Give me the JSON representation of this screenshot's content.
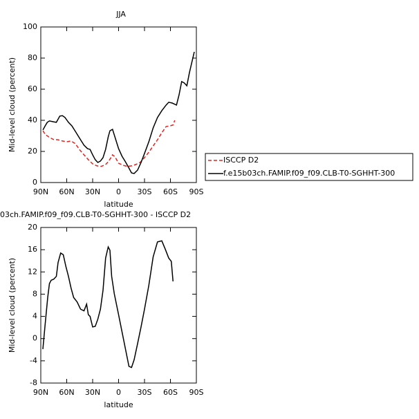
{
  "chart_data": [
    {
      "type": "line",
      "title": "JJA",
      "ylabel": "Mid-level cloud (percent)",
      "xlabel": "latitude",
      "xlim": [
        90,
        -90
      ],
      "xticks": [
        {
          "value": 90,
          "label": "90N"
        },
        {
          "value": 60,
          "label": "60N"
        },
        {
          "value": 30,
          "label": "30N"
        },
        0,
        {
          "value": -30,
          "label": "30S"
        },
        {
          "value": -60,
          "label": "60S"
        },
        {
          "value": -90,
          "label": "90S"
        }
      ],
      "ylim": [
        0,
        100
      ],
      "yticks": [
        0,
        20,
        40,
        60,
        80,
        100
      ],
      "legend": "right",
      "series": [
        {
          "name": "ISCCP D2",
          "color": "#e8201c",
          "dashed": true,
          "x": [
            87.5,
            85,
            80,
            75,
            70,
            65,
            60,
            55,
            50,
            45,
            40,
            35,
            30,
            25,
            20,
            15,
            12,
            10,
            7,
            4,
            0,
            -5,
            -10,
            -15,
            -20,
            -25,
            -30,
            -35,
            -40,
            -45,
            -50,
            -55,
            -60,
            -63,
            -65
          ],
          "values": [
            33.3,
            31,
            29,
            27.6,
            27.5,
            26.7,
            26.2,
            26.7,
            25,
            21,
            17.8,
            14.7,
            12,
            10.7,
            10.4,
            11.6,
            13.3,
            15,
            17.8,
            16.4,
            12.4,
            11.1,
            10.4,
            10.7,
            11.6,
            13,
            16,
            19.5,
            23.5,
            27.5,
            32,
            36,
            36.5,
            37,
            40
          ]
        },
        {
          "name": "f.e15b03ch.FAMIP.f09_f09.CLB-T0-SGHHT-300",
          "color": "#000000",
          "dashed": false,
          "x": [
            87.5,
            85,
            82.5,
            80,
            75,
            72,
            68,
            65,
            62,
            58,
            54,
            50,
            45,
            40,
            36,
            33,
            30,
            27,
            24,
            21,
            18,
            15,
            12,
            10,
            7,
            4,
            0,
            -4,
            -8,
            -12,
            -15,
            -18,
            -22,
            -26,
            -30,
            -35,
            -40,
            -45,
            -50,
            -55,
            -58,
            -62,
            -67,
            -70,
            -73,
            -76,
            -79,
            -82,
            -87.6
          ],
          "values": [
            33.8,
            36.4,
            38.7,
            39.6,
            39,
            38.7,
            42.7,
            43,
            41.8,
            38.7,
            36.4,
            32.9,
            28.4,
            24,
            21.8,
            21.3,
            17.8,
            14.7,
            12.9,
            13.8,
            16,
            21.3,
            29.3,
            33.3,
            34.2,
            28.9,
            21.8,
            16.9,
            13.3,
            9.3,
            6.2,
            5.8,
            8,
            12.9,
            18.7,
            26.2,
            35.1,
            41.8,
            46.2,
            49.8,
            51.6,
            51.1,
            49.8,
            56.4,
            64.9,
            64,
            62.2,
            70.7,
            84
          ]
        }
      ]
    },
    {
      "type": "line",
      "title": "03ch.FAMIP.f09_f09.CLB-T0-SGHHT-300 - ISCCP D2",
      "ylabel": "Mid-level cloud (percent)",
      "xlabel": "latitude",
      "xlim": [
        90,
        -90
      ],
      "xticks": [
        {
          "value": 90,
          "label": "90N"
        },
        {
          "value": 60,
          "label": "60N"
        },
        {
          "value": 30,
          "label": "30N"
        },
        0,
        {
          "value": -30,
          "label": "30S"
        },
        {
          "value": -60,
          "label": "60S"
        },
        {
          "value": -90,
          "label": "90S"
        }
      ],
      "ylim": [
        -8,
        20
      ],
      "yticks": [
        -8,
        -4,
        0,
        4,
        8,
        12,
        16,
        20
      ],
      "color": "#000000",
      "x": [
        87.6,
        85,
        82,
        80,
        78,
        75,
        72,
        70,
        67,
        64,
        61,
        58,
        55,
        52,
        48,
        44,
        40,
        37,
        35,
        33,
        30,
        27,
        24,
        21,
        18,
        15,
        12,
        10,
        8,
        5,
        0,
        -4,
        -8,
        -12,
        -15,
        -18,
        -22,
        -26,
        -30,
        -35,
        -40,
        -45,
        -50,
        -54,
        -58,
        -61,
        -63
      ],
      "values": [
        -1.9,
        2.5,
        7.4,
        9.9,
        10.5,
        10.7,
        11.2,
        13.7,
        15.4,
        15.1,
        13,
        11.2,
        9.1,
        7.4,
        6.6,
        5.3,
        5,
        6.2,
        4.3,
        4,
        2.1,
        2.2,
        3.5,
        5.3,
        8.7,
        14.5,
        16.5,
        15.9,
        11.2,
        8.1,
        4.3,
        1.2,
        -1.9,
        -5,
        -5.2,
        -3.8,
        -0.9,
        2.1,
        5.3,
        9.6,
        14.7,
        17.4,
        17.6,
        16.1,
        14.5,
        13.9,
        10.3
      ]
    }
  ]
}
